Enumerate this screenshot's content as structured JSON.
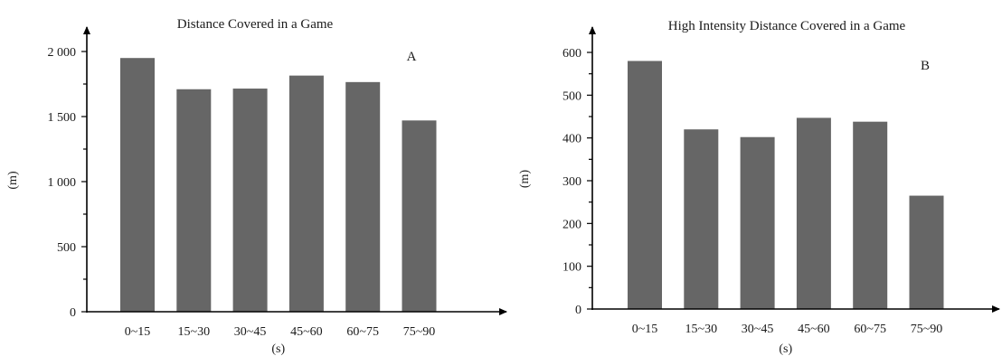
{
  "chart_data": [
    {
      "type": "bar",
      "title": "Distance Covered in a Game",
      "panel_label": "A",
      "xlabel": "(s)",
      "ylabel": "(m)",
      "categories": [
        "0~15",
        "15~30",
        "30~45",
        "45~60",
        "60~75",
        "75~90"
      ],
      "values": [
        1950,
        1710,
        1715,
        1815,
        1765,
        1470
      ],
      "ylim": [
        0,
        2000
      ],
      "yticks": [
        0,
        500,
        1000,
        1500,
        2000
      ],
      "ytick_labels": [
        "0",
        "500",
        "1 000",
        "1 500",
        "2 000"
      ],
      "grid": false,
      "bar_color": "#666666"
    },
    {
      "type": "bar",
      "title": "High Intensity Distance Covered in a Game",
      "panel_label": "B",
      "xlabel": "(s)",
      "ylabel": "(m)",
      "categories": [
        "0~15",
        "15~30",
        "30~45",
        "45~60",
        "60~75",
        "75~90"
      ],
      "values": [
        580,
        420,
        402,
        447,
        438,
        265
      ],
      "ylim": [
        0,
        600
      ],
      "yticks": [
        0,
        100,
        200,
        300,
        400,
        500,
        600
      ],
      "ytick_labels": [
        "0",
        "100",
        "200",
        "300",
        "400",
        "500",
        "600"
      ],
      "grid": false,
      "bar_color": "#666666"
    }
  ]
}
